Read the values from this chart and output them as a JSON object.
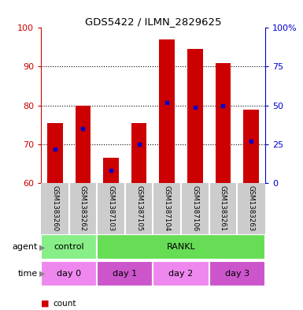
{
  "title": "GDS5422 / ILMN_2829625",
  "samples": [
    "GSM1383260",
    "GSM1383262",
    "GSM1387103",
    "GSM1387105",
    "GSM1387104",
    "GSM1387106",
    "GSM1383261",
    "GSM1383263"
  ],
  "counts": [
    75.5,
    80.0,
    66.5,
    75.5,
    97.0,
    94.5,
    91.0,
    79.0
  ],
  "percentiles": [
    22,
    35,
    8,
    25,
    52,
    49,
    50,
    27
  ],
  "ymin": 60,
  "ymax": 100,
  "yticks": [
    60,
    70,
    80,
    90,
    100
  ],
  "right_yticks": [
    0,
    25,
    50,
    75,
    100
  ],
  "right_ytick_labels": [
    "0",
    "25",
    "50",
    "75",
    "100%"
  ],
  "bar_color": "#cc0000",
  "dot_color": "#0000cc",
  "agent_groups": [
    {
      "label": "control",
      "start": 0,
      "end": 2,
      "color": "#88ee88"
    },
    {
      "label": "RANKL",
      "start": 2,
      "end": 8,
      "color": "#66dd55"
    }
  ],
  "time_groups": [
    {
      "label": "day 0",
      "start": 0,
      "end": 2,
      "color": "#ee88ee"
    },
    {
      "label": "day 1",
      "start": 2,
      "end": 4,
      "color": "#cc55cc"
    },
    {
      "label": "day 2",
      "start": 4,
      "end": 6,
      "color": "#ee88ee"
    },
    {
      "label": "day 3",
      "start": 6,
      "end": 8,
      "color": "#cc55cc"
    }
  ],
  "sample_bg_color": "#cccccc",
  "left_axis_color": "#cc0000",
  "right_axis_color": "#0000cc",
  "legend_count_color": "#cc0000",
  "legend_dot_color": "#0000cc",
  "grid_yticks": [
    70,
    80,
    90
  ]
}
